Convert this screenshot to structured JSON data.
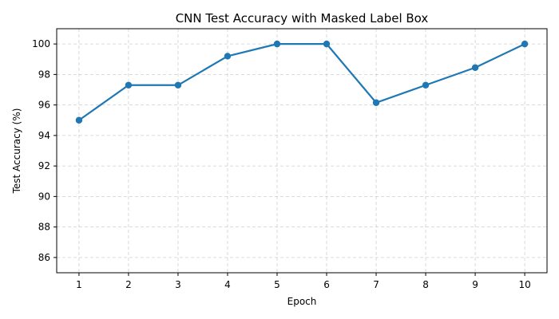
{
  "chart_data": {
    "type": "line",
    "title": "CNN Test Accuracy with Masked Label Box",
    "xlabel": "Epoch",
    "ylabel": "Test Accuracy (%)",
    "x": [
      1,
      2,
      3,
      4,
      5,
      6,
      7,
      8,
      9,
      10
    ],
    "xlim": [
      0.55,
      10.45
    ],
    "ylim": [
      85,
      101
    ],
    "xticks": [
      1,
      2,
      3,
      4,
      5,
      6,
      7,
      8,
      9,
      10
    ],
    "yticks": [
      86,
      88,
      90,
      92,
      94,
      96,
      98,
      100
    ],
    "grid": true,
    "legend": "none",
    "series": [
      {
        "values": [
          95.0,
          97.3,
          97.3,
          99.2,
          100.0,
          100.0,
          96.15,
          97.3,
          98.45,
          100.0
        ],
        "color": "#1f77b4",
        "marker": "circle"
      }
    ]
  }
}
